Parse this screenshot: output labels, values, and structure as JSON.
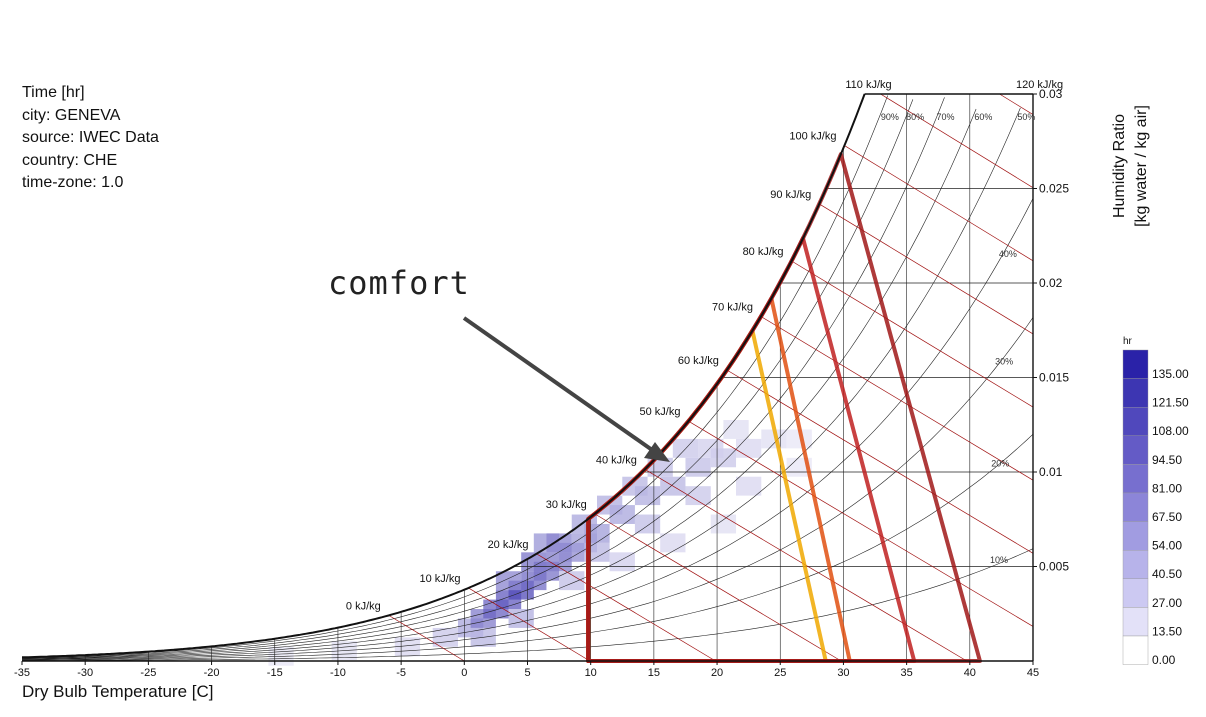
{
  "info_block": [
    "Time [hr]",
    "city: GENEVA",
    "source: IWEC Data",
    "country: CHE",
    "time-zone: 1.0"
  ],
  "annotation": {
    "text": "comfort"
  },
  "colors": {
    "saturation": "#111111",
    "enthalpy_grid": "#a01010",
    "grid": "#222222",
    "comfort_yellow": "#f0a800",
    "comfort_orange": "#e05010",
    "comfort_red": "#c02020",
    "comfort_darkred": "#a01818",
    "legend_low": "#ffffff",
    "legend_high": "#2a22a8"
  },
  "chart_data": {
    "type": "heatmap",
    "title": "",
    "xlabel": "Dry Bulb Temperature [C]",
    "ylabel": "Humidity Ratio\n[kg water / kg air]",
    "xlim": [
      -35,
      45
    ],
    "ylim": [
      0,
      0.03
    ],
    "x_ticks": [
      "-35",
      "-30",
      "-25",
      "-20",
      "-15",
      "-10",
      "-5",
      "0",
      "5",
      "10",
      "15",
      "20",
      "25",
      "30",
      "35",
      "40",
      "45"
    ],
    "y_ticks": [
      "0.005",
      "0.01",
      "0.015",
      "0.02",
      "0.025",
      "0.03"
    ],
    "enthalpy_labels": [
      "0 kJ/kg",
      "10 kJ/kg",
      "20 kJ/kg",
      "30 kJ/kg",
      "40 kJ/kg",
      "50 kJ/kg",
      "60 kJ/kg",
      "70 kJ/kg",
      "80 kJ/kg",
      "90 kJ/kg",
      "100 kJ/kg",
      "110 kJ/kg",
      "120 kJ/kg"
    ],
    "enthalpy_values": [
      0,
      10,
      20,
      30,
      40,
      50,
      60,
      70,
      80,
      90,
      100,
      110,
      120
    ],
    "rh_labels": [
      "90%",
      "80%",
      "70%",
      "60%",
      "50%",
      "40%",
      "30%",
      "20%",
      "10%"
    ],
    "rh_values": [
      90,
      80,
      70,
      60,
      50,
      40,
      30,
      20,
      10
    ],
    "comfort_polygons": [
      {
        "color": "yellow",
        "x": [
          9.8,
          23.0,
          28.6,
          28.6,
          9.8
        ]
      },
      {
        "color": "orange",
        "x": [
          9.8,
          24.3,
          30.5,
          30.5,
          9.8
        ]
      },
      {
        "color": "red",
        "x": [
          9.8,
          26.9,
          35.6,
          35.6,
          9.8
        ]
      },
      {
        "color": "darkred",
        "x": [
          9.8,
          29.8,
          40.8,
          40.8,
          9.8
        ]
      }
    ],
    "frequency_cells": [
      {
        "t": -5,
        "w": 0.001,
        "v": 25
      },
      {
        "t": -2,
        "w": 0.0015,
        "v": 35
      },
      {
        "t": 0,
        "w": 0.002,
        "v": 55
      },
      {
        "t": 1,
        "w": 0.0025,
        "v": 80
      },
      {
        "t": 2,
        "w": 0.003,
        "v": 95
      },
      {
        "t": 3,
        "w": 0.0035,
        "v": 100
      },
      {
        "t": 4,
        "w": 0.004,
        "v": 110
      },
      {
        "t": 5,
        "w": 0.0045,
        "v": 90
      },
      {
        "t": 6,
        "w": 0.005,
        "v": 85
      },
      {
        "t": 7,
        "w": 0.0055,
        "v": 80
      },
      {
        "t": 8,
        "w": 0.006,
        "v": 70
      },
      {
        "t": 9,
        "w": 0.0065,
        "v": 60
      },
      {
        "t": 10,
        "w": 0.007,
        "v": 60
      },
      {
        "t": 12,
        "w": 0.008,
        "v": 55
      },
      {
        "t": 14,
        "w": 0.009,
        "v": 50
      },
      {
        "t": 16,
        "w": 0.0095,
        "v": 45
      },
      {
        "t": 18,
        "w": 0.0105,
        "v": 40
      },
      {
        "t": 20,
        "w": 0.011,
        "v": 35
      },
      {
        "t": 22,
        "w": 0.0115,
        "v": 25
      },
      {
        "t": 24,
        "w": 0.012,
        "v": 20
      },
      {
        "t": 26,
        "w": 0.012,
        "v": 15
      },
      {
        "t": 3,
        "w": 0.0045,
        "v": 75
      },
      {
        "t": 6,
        "w": 0.0065,
        "v": 65
      },
      {
        "t": 11,
        "w": 0.0085,
        "v": 50
      },
      {
        "t": 15,
        "w": 0.0105,
        "v": 40
      },
      {
        "t": 19,
        "w": 0.0115,
        "v": 30
      },
      {
        "t": 10,
        "w": 0.006,
        "v": 45
      },
      {
        "t": 14,
        "w": 0.0075,
        "v": 40
      },
      {
        "t": 18,
        "w": 0.009,
        "v": 35
      },
      {
        "t": 22,
        "w": 0.0095,
        "v": 25
      },
      {
        "t": 26,
        "w": 0.0105,
        "v": 15
      },
      {
        "t": 8,
        "w": 0.0045,
        "v": 40
      },
      {
        "t": 12,
        "w": 0.0055,
        "v": 30
      },
      {
        "t": 16,
        "w": 0.0065,
        "v": 25
      },
      {
        "t": 20,
        "w": 0.0075,
        "v": 20
      },
      {
        "t": -10,
        "w": 0.0008,
        "v": 20
      },
      {
        "t": -15,
        "w": 0.0005,
        "v": 15
      },
      {
        "t": 1,
        "w": 0.0015,
        "v": 45
      },
      {
        "t": 4,
        "w": 0.0025,
        "v": 50
      },
      {
        "t": 13,
        "w": 0.0095,
        "v": 45
      },
      {
        "t": 17,
        "w": 0.0115,
        "v": 35
      },
      {
        "t": 21,
        "w": 0.0125,
        "v": 20
      },
      {
        "t": 9,
        "w": 0.0075,
        "v": 55
      },
      {
        "t": 7,
        "w": 0.0065,
        "v": 75
      },
      {
        "t": 5,
        "w": 0.0055,
        "v": 85
      }
    ],
    "legend": {
      "title": "hr",
      "position": "right",
      "values": [
        "135.00",
        "121.50",
        "108.00",
        "94.50",
        "81.00",
        "67.50",
        "54.00",
        "40.50",
        "27.00",
        "13.50",
        "0.00"
      ],
      "colors": [
        "#2a22a8",
        "#3d36b2",
        "#5048bc",
        "#645bc6",
        "#776fcf",
        "#8c85d8",
        "#a19ce1",
        "#b7b3ea",
        "#ccc9f2",
        "#e3e1f8",
        "#ffffff"
      ]
    }
  }
}
